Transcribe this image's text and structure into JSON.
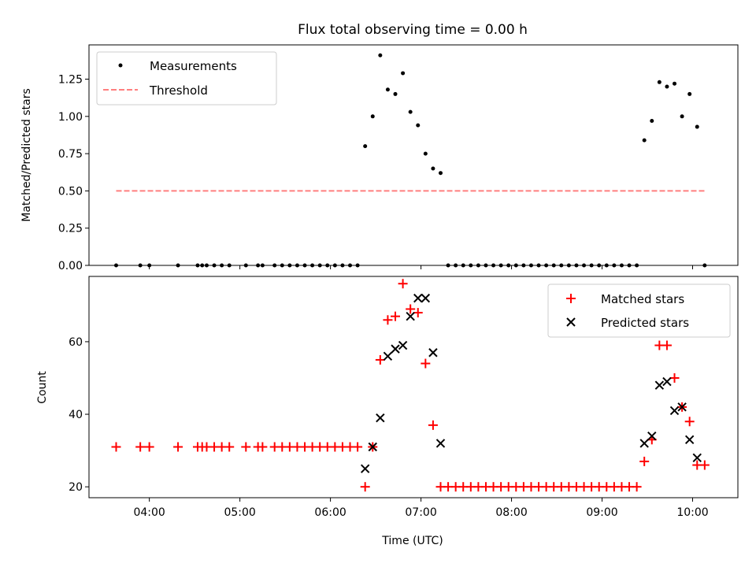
{
  "chart_data": [
    {
      "type": "scatter",
      "title": "Flux total observing time = 0.00 h",
      "xlabel": "",
      "ylabel": "Matched/Predicted stars",
      "xlim": [
        "03:20",
        "10:30"
      ],
      "ylim": [
        0,
        1.48
      ],
      "x_ticks": [
        "04:00",
        "05:00",
        "06:00",
        "07:00",
        "08:00",
        "09:00",
        "10:00"
      ],
      "y_ticks": [
        "0.00",
        "0.25",
        "0.50",
        "0.75",
        "1.00",
        "1.25"
      ],
      "legend": "top-left",
      "grid": false,
      "series": [
        {
          "name": "Measurements",
          "color": "#000000",
          "marker": "dot",
          "points": [
            [
              "03:38",
              0
            ],
            [
              "03:54",
              0
            ],
            [
              "04:00",
              0
            ],
            [
              "04:19",
              0
            ],
            [
              "04:32",
              0
            ],
            [
              "04:35",
              0
            ],
            [
              "04:38",
              0
            ],
            [
              "04:43",
              0
            ],
            [
              "04:48",
              0
            ],
            [
              "04:53",
              0
            ],
            [
              "05:04",
              0
            ],
            [
              "05:12",
              0
            ],
            [
              "05:15",
              0
            ],
            [
              "05:23",
              0
            ],
            [
              "05:28",
              0
            ],
            [
              "05:33",
              0
            ],
            [
              "05:38",
              0
            ],
            [
              "05:43",
              0
            ],
            [
              "05:48",
              0
            ],
            [
              "05:53",
              0
            ],
            [
              "05:58",
              0
            ],
            [
              "06:03",
              0
            ],
            [
              "06:08",
              0
            ],
            [
              "06:13",
              0
            ],
            [
              "06:18",
              0
            ],
            [
              "06:23",
              0.8
            ],
            [
              "06:28",
              1.0
            ],
            [
              "06:33",
              1.41
            ],
            [
              "06:38",
              1.18
            ],
            [
              "06:43",
              1.15
            ],
            [
              "06:48",
              1.29
            ],
            [
              "06:53",
              1.03
            ],
            [
              "06:58",
              0.94
            ],
            [
              "07:03",
              0.75
            ],
            [
              "07:08",
              0.65
            ],
            [
              "07:13",
              0.62
            ],
            [
              "07:18",
              0
            ],
            [
              "07:23",
              0
            ],
            [
              "07:28",
              0
            ],
            [
              "07:33",
              0
            ],
            [
              "07:38",
              0
            ],
            [
              "07:43",
              0
            ],
            [
              "07:48",
              0
            ],
            [
              "07:53",
              0
            ],
            [
              "07:58",
              0
            ],
            [
              "08:03",
              0
            ],
            [
              "08:08",
              0
            ],
            [
              "08:13",
              0
            ],
            [
              "08:18",
              0
            ],
            [
              "08:23",
              0
            ],
            [
              "08:28",
              0
            ],
            [
              "08:33",
              0
            ],
            [
              "08:38",
              0
            ],
            [
              "08:43",
              0
            ],
            [
              "08:48",
              0
            ],
            [
              "08:53",
              0
            ],
            [
              "08:58",
              0
            ],
            [
              "09:03",
              0
            ],
            [
              "09:08",
              0
            ],
            [
              "09:13",
              0
            ],
            [
              "09:18",
              0
            ],
            [
              "09:23",
              0
            ],
            [
              "09:28",
              0.84
            ],
            [
              "09:33",
              0.97
            ],
            [
              "09:38",
              1.23
            ],
            [
              "09:43",
              1.2
            ],
            [
              "09:48",
              1.22
            ],
            [
              "09:53",
              1.0
            ],
            [
              "09:58",
              1.15
            ],
            [
              "10:03",
              0.93
            ],
            [
              "10:08",
              0
            ]
          ]
        },
        {
          "name": "Threshold",
          "color": "#ff7f7f",
          "style": "dashed",
          "points": [
            [
              "03:38",
              0.5
            ],
            [
              "10:08",
              0.5
            ]
          ]
        }
      ]
    },
    {
      "type": "scatter",
      "title": "",
      "xlabel": "Time (UTC)",
      "ylabel": "Count",
      "xlim": [
        "03:20",
        "10:30"
      ],
      "ylim": [
        17,
        78
      ],
      "x_ticks": [
        "04:00",
        "05:00",
        "06:00",
        "07:00",
        "08:00",
        "09:00",
        "10:00"
      ],
      "y_ticks": [
        "20",
        "40",
        "60"
      ],
      "legend": "top-right",
      "grid": false,
      "series": [
        {
          "name": "Matched stars",
          "color": "#ff0000",
          "marker": "plus",
          "points": [
            [
              "03:38",
              31
            ],
            [
              "03:54",
              31
            ],
            [
              "04:00",
              31
            ],
            [
              "04:19",
              31
            ],
            [
              "04:32",
              31
            ],
            [
              "04:35",
              31
            ],
            [
              "04:38",
              31
            ],
            [
              "04:43",
              31
            ],
            [
              "04:48",
              31
            ],
            [
              "04:53",
              31
            ],
            [
              "05:04",
              31
            ],
            [
              "05:12",
              31
            ],
            [
              "05:15",
              31
            ],
            [
              "05:23",
              31
            ],
            [
              "05:28",
              31
            ],
            [
              "05:33",
              31
            ],
            [
              "05:38",
              31
            ],
            [
              "05:43",
              31
            ],
            [
              "05:48",
              31
            ],
            [
              "05:53",
              31
            ],
            [
              "05:58",
              31
            ],
            [
              "06:03",
              31
            ],
            [
              "06:08",
              31
            ],
            [
              "06:13",
              31
            ],
            [
              "06:18",
              31
            ],
            [
              "06:23",
              20
            ],
            [
              "06:28",
              31
            ],
            [
              "06:33",
              55
            ],
            [
              "06:38",
              66
            ],
            [
              "06:43",
              67
            ],
            [
              "06:48",
              76
            ],
            [
              "06:53",
              69
            ],
            [
              "06:58",
              68
            ],
            [
              "07:03",
              54
            ],
            [
              "07:08",
              37
            ],
            [
              "07:13",
              20
            ],
            [
              "07:18",
              20
            ],
            [
              "07:23",
              20
            ],
            [
              "07:28",
              20
            ],
            [
              "07:33",
              20
            ],
            [
              "07:38",
              20
            ],
            [
              "07:43",
              20
            ],
            [
              "07:48",
              20
            ],
            [
              "07:53",
              20
            ],
            [
              "07:58",
              20
            ],
            [
              "08:03",
              20
            ],
            [
              "08:08",
              20
            ],
            [
              "08:13",
              20
            ],
            [
              "08:18",
              20
            ],
            [
              "08:23",
              20
            ],
            [
              "08:28",
              20
            ],
            [
              "08:33",
              20
            ],
            [
              "08:38",
              20
            ],
            [
              "08:43",
              20
            ],
            [
              "08:48",
              20
            ],
            [
              "08:53",
              20
            ],
            [
              "08:58",
              20
            ],
            [
              "09:03",
              20
            ],
            [
              "09:08",
              20
            ],
            [
              "09:13",
              20
            ],
            [
              "09:18",
              20
            ],
            [
              "09:23",
              20
            ],
            [
              "09:28",
              27
            ],
            [
              "09:33",
              33
            ],
            [
              "09:38",
              59
            ],
            [
              "09:43",
              59
            ],
            [
              "09:48",
              50
            ],
            [
              "09:53",
              42
            ],
            [
              "09:58",
              38
            ],
            [
              "10:03",
              26
            ],
            [
              "10:08",
              26
            ]
          ]
        },
        {
          "name": "Predicted stars",
          "color": "#000000",
          "marker": "x",
          "points": [
            [
              "06:23",
              25
            ],
            [
              "06:28",
              31
            ],
            [
              "06:33",
              39
            ],
            [
              "06:38",
              56
            ],
            [
              "06:43",
              58
            ],
            [
              "06:48",
              59
            ],
            [
              "06:53",
              67
            ],
            [
              "06:58",
              72
            ],
            [
              "07:03",
              72
            ],
            [
              "07:08",
              57
            ],
            [
              "07:13",
              32
            ],
            [
              "09:28",
              32
            ],
            [
              "09:33",
              34
            ],
            [
              "09:38",
              48
            ],
            [
              "09:43",
              49
            ],
            [
              "09:48",
              41
            ],
            [
              "09:53",
              42
            ],
            [
              "09:58",
              33
            ],
            [
              "10:03",
              28
            ]
          ]
        }
      ]
    }
  ]
}
